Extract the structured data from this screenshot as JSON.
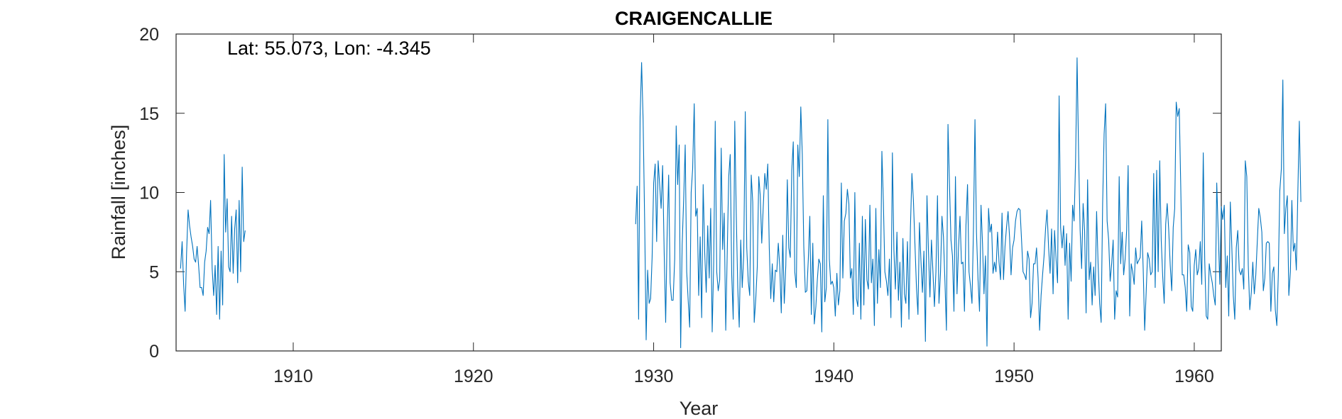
{
  "chart_data": {
    "type": "line",
    "title": "CRAIGENCALLIE",
    "annotation": "Lat: 55.073, Lon: -4.345",
    "xlabel": "Year",
    "ylabel": "Rainfall [inches]",
    "xlim": [
      1903.5,
      1961.5
    ],
    "ylim": [
      0,
      20
    ],
    "xticks": [
      1910,
      1920,
      1930,
      1940,
      1950,
      1960
    ],
    "yticks": [
      0,
      5,
      10,
      15,
      20
    ],
    "grid": false,
    "line_color": "#0072BD",
    "series": [
      {
        "x_start": 1903.75,
        "x_step": 0.08333,
        "values": [
          5.2,
          6.9,
          4.2,
          2.5,
          6.2,
          8.9,
          7.9,
          7.2,
          6.6,
          5.8,
          5.6,
          6.6,
          5.4,
          4.0,
          4.0,
          3.5,
          5.6,
          6.3,
          7.8,
          7.4,
          9.5,
          5.2,
          3.5,
          5.4,
          2.3,
          6.6,
          2.0,
          6.3,
          2.9,
          12.4,
          7.5,
          9.6,
          5.3,
          5.0,
          8.5,
          4.9,
          7.7,
          8.9,
          4.3,
          9.5,
          5.0,
          11.6,
          6.9,
          7.6
        ]
      },
      {
        "x_start": 1929.0,
        "x_step": 0.08333,
        "values": [
          8.0,
          10.4,
          2.0,
          14.8,
          18.2,
          14.6,
          8.2,
          0.7,
          5.1,
          3.0,
          3.3,
          5.9,
          10.6,
          11.8,
          6.9,
          12.0,
          10.5,
          9.0,
          11.7,
          6.2,
          1.8,
          7.5,
          11.1,
          4.3,
          3.2,
          3.2,
          5.8,
          14.2,
          10.5,
          13.0,
          0.2,
          6.7,
          9.5,
          13.0,
          5.0,
          3.2,
          1.5,
          10.0,
          11.5,
          15.6,
          8.5,
          9.0,
          3.5,
          7.2,
          2.1,
          10.5,
          6.2,
          3.7,
          7.9,
          4.6,
          9.0,
          1.2,
          5.5,
          14.5,
          5.0,
          3.8,
          4.5,
          12.8,
          6.4,
          8.7,
          1.3,
          6.2,
          11.0,
          12.4,
          4.8,
          2.0,
          14.5,
          8.7,
          4.0,
          1.5,
          7.0,
          4.0,
          6.0,
          15.1,
          6.5,
          4.4,
          3.5,
          11.1,
          9.4,
          1.8,
          3.3,
          5.3,
          11.0,
          9.8,
          6.8,
          9.1,
          11.2,
          10.2,
          11.8,
          6.5,
          3.3,
          5.5,
          3.1,
          5.1,
          5.0,
          6.8,
          5.3,
          2.4,
          7.3,
          3.0,
          5.4,
          10.8,
          6.5,
          5.9,
          11.4,
          13.2,
          5.0,
          4.0,
          13.0,
          11.0,
          15.4,
          12.4,
          6.6,
          3.7,
          3.8,
          5.8,
          8.5,
          2.3,
          6.8,
          1.7,
          2.8,
          4.5,
          5.8,
          5.5,
          1.2,
          9.8,
          3.1,
          4.0,
          14.6,
          5.8,
          4.2,
          4.4,
          4.0,
          2.2,
          4.9,
          2.9,
          3.8,
          10.6,
          4.6,
          8.2,
          8.7,
          10.2,
          9.3,
          4.6,
          5.2,
          2.3,
          10.0,
          3.3,
          2.8,
          6.8,
          2.0,
          8.5,
          2.9,
          8.3,
          4.5,
          3.9,
          9.2,
          4.3,
          5.8,
          1.6,
          9.0,
          3.0,
          6.4,
          4.0,
          12.6,
          9.4,
          5.0,
          4.4,
          3.5,
          5.8,
          2.1,
          12.5,
          6.4,
          3.9,
          7.5,
          3.2,
          5.6,
          1.5,
          7.1,
          3.6,
          3.0,
          6.9,
          2.0,
          7.8,
          11.2,
          9.5,
          6.8,
          4.0,
          2.3,
          8.1,
          5.7,
          3.7,
          6.3,
          0.6,
          9.8,
          6.3,
          3.4,
          7.0,
          5.0,
          2.8,
          5.0,
          9.8,
          3.0,
          4.9,
          8.5,
          7.2,
          4.4,
          1.3,
          14.3,
          10.5,
          7.0,
          6.0,
          2.5,
          11.0,
          3.6,
          6.5,
          8.5,
          5.5,
          5.6,
          2.5,
          7.9,
          10.5,
          5.0,
          4.1,
          3.0,
          7.8,
          14.6,
          7.5,
          4.5,
          2.5,
          9.2,
          6.8,
          3.6,
          6.0,
          0.3,
          9.0,
          7.5,
          8.0,
          4.9,
          5.6,
          5.0,
          7.5,
          5.6,
          4.5,
          8.7,
          4.5,
          6.6,
          7.8,
          8.8,
          7.2,
          4.8,
          6.5,
          7.0,
          8.2,
          8.8,
          9.0,
          8.9,
          7.0,
          5.0,
          4.8,
          4.5,
          6.3,
          5.8,
          2.1,
          3.0,
          5.5,
          5.5,
          6.5,
          4.6,
          1.3,
          3.5,
          4.8,
          6.0,
          7.7,
          8.9,
          6.5,
          4.9,
          7.7,
          3.6,
          7.6,
          5.8,
          4.3,
          16.1,
          7.8,
          6.5,
          7.9,
          5.4,
          7.4,
          2.0,
          6.8,
          4.4,
          9.2,
          8.2,
          12.0,
          18.5,
          12.3,
          7.6,
          5.2,
          9.3,
          7.6,
          2.4,
          10.8,
          4.5,
          5.6,
          2.9,
          5.3,
          3.5,
          8.8,
          5.5,
          3.0,
          1.8,
          9.3,
          13.7,
          15.6,
          8.2,
          7.0,
          4.4,
          5.5,
          7.0,
          2.0,
          3.8,
          3.4,
          11.0,
          5.5,
          7.5,
          4.8,
          5.8,
          7.6,
          11.7,
          2.2,
          5.5,
          5.0,
          4.2,
          6.5,
          5.5,
          5.7,
          5.9,
          8.2,
          5.2,
          1.3,
          3.7,
          6.2,
          5.8,
          4.8,
          5.0,
          11.2,
          4.0,
          11.4,
          5.0,
          12.0,
          7.0,
          4.7,
          3.0,
          8.0,
          9.3,
          7.7,
          5.4,
          3.8,
          7.8,
          9.0,
          15.7,
          14.8,
          15.3,
          10.4,
          4.8,
          4.8,
          4.0,
          2.5,
          6.7,
          6.2,
          2.8,
          2.5,
          5.4,
          6.4,
          4.8,
          5.2,
          6.9,
          4.2,
          12.5,
          5.7,
          2.2,
          2.0,
          5.5,
          4.8,
          4.3,
          3.5,
          2.9,
          10.6,
          7.5,
          4.2,
          9.1,
          8.3,
          9.2,
          4.0,
          6.0,
          2.2,
          9.4,
          6.6,
          3.5,
          2.0,
          6.5,
          7.6,
          5.1,
          4.8,
          5.2,
          3.9,
          12.0,
          11.0,
          5.4,
          2.6,
          3.7,
          5.6,
          3.6,
          4.8,
          6.9,
          9.0,
          8.4,
          7.5,
          3.8,
          4.6,
          6.8,
          6.9,
          6.8,
          2.5,
          4.9,
          5.3,
          2.6,
          1.6,
          4.8,
          10.1,
          11.5,
          17.1,
          7.4,
          9.0,
          9.8,
          3.5,
          5.0,
          9.5,
          6.3,
          6.8,
          5.1,
          10.0,
          14.5,
          9.4
        ]
      }
    ]
  }
}
